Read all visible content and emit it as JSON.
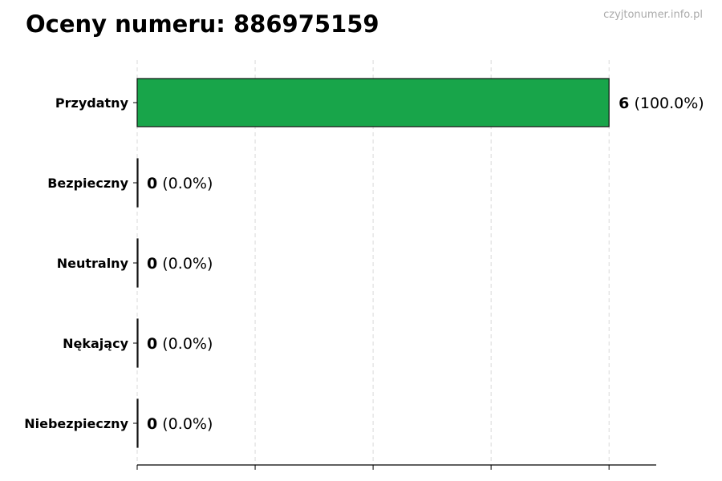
{
  "watermark": "czyjtonumer.info.pl",
  "chart_data": {
    "type": "bar",
    "orientation": "horizontal",
    "title": "Oceny numeru: 886975159",
    "categories": [
      "Przydatny",
      "Bezpieczny",
      "Neutralny",
      "Nękający",
      "Niebezpieczny"
    ],
    "values": [
      6,
      0,
      0,
      0,
      0
    ],
    "value_labels": [
      "(100.0%)",
      "(0.0%)",
      "(0.0%)",
      "(0.0%)",
      "(0.0%)"
    ],
    "bar_color": "#18a54a",
    "xlim": [
      0,
      6.6
    ],
    "x_ticks": [
      0,
      1.5,
      3,
      4.5,
      6
    ],
    "grid": "vertical dashed",
    "xlabel": "",
    "ylabel": ""
  }
}
